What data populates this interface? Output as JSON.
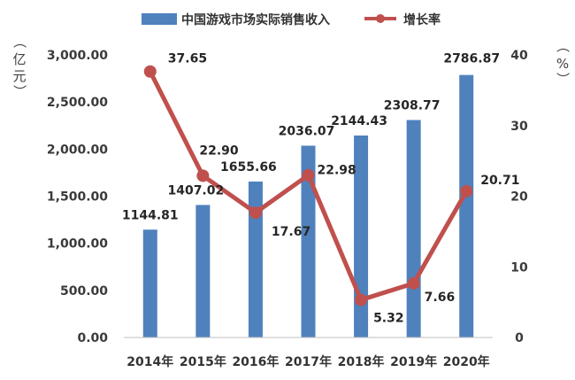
{
  "chart_data": {
    "type": "bar+line",
    "title": "",
    "categories": [
      "2014年",
      "2015年",
      "2016年",
      "2017年",
      "2018年",
      "2019年",
      "2020年"
    ],
    "series": [
      {
        "name": "中国游戏市场实际销售收入",
        "type": "bar",
        "axis": "left",
        "color": "#4f81bd",
        "values": [
          1144.81,
          1407.02,
          1655.66,
          2036.07,
          2144.43,
          2308.77,
          2786.87
        ],
        "labels": [
          "1144.81",
          "1407.02",
          "1655.66",
          "2036.07",
          "2144.43",
          "2308.77",
          "2786.87"
        ]
      },
      {
        "name": "增长率",
        "type": "line",
        "axis": "right",
        "color": "#c0504d",
        "values": [
          37.65,
          22.9,
          17.67,
          22.98,
          5.32,
          7.66,
          20.71
        ],
        "labels": [
          "37.65",
          "22.90",
          "17.67",
          "22.98",
          "5.32",
          "7.66",
          "20.71"
        ]
      }
    ],
    "left_axis": {
      "unit_label": [
        "亿",
        "元"
      ],
      "range": [
        0,
        3000
      ],
      "ticks": [
        0,
        500,
        1000,
        1500,
        2000,
        2500,
        3000
      ],
      "tick_labels": [
        "0.00",
        "500.00",
        "1,000.00",
        "1,500.00",
        "2,000.00",
        "2,500.00",
        "3,000.00"
      ]
    },
    "right_axis": {
      "unit_label": [
        "（",
        "%",
        "）"
      ],
      "range": [
        0,
        40
      ],
      "ticks": [
        0,
        10,
        20,
        30,
        40
      ],
      "tick_labels": [
        "0",
        "10",
        "20",
        "30",
        "40"
      ]
    },
    "left_paren": [
      "（",
      "）"
    ],
    "legend_position": "top",
    "grid": false
  }
}
